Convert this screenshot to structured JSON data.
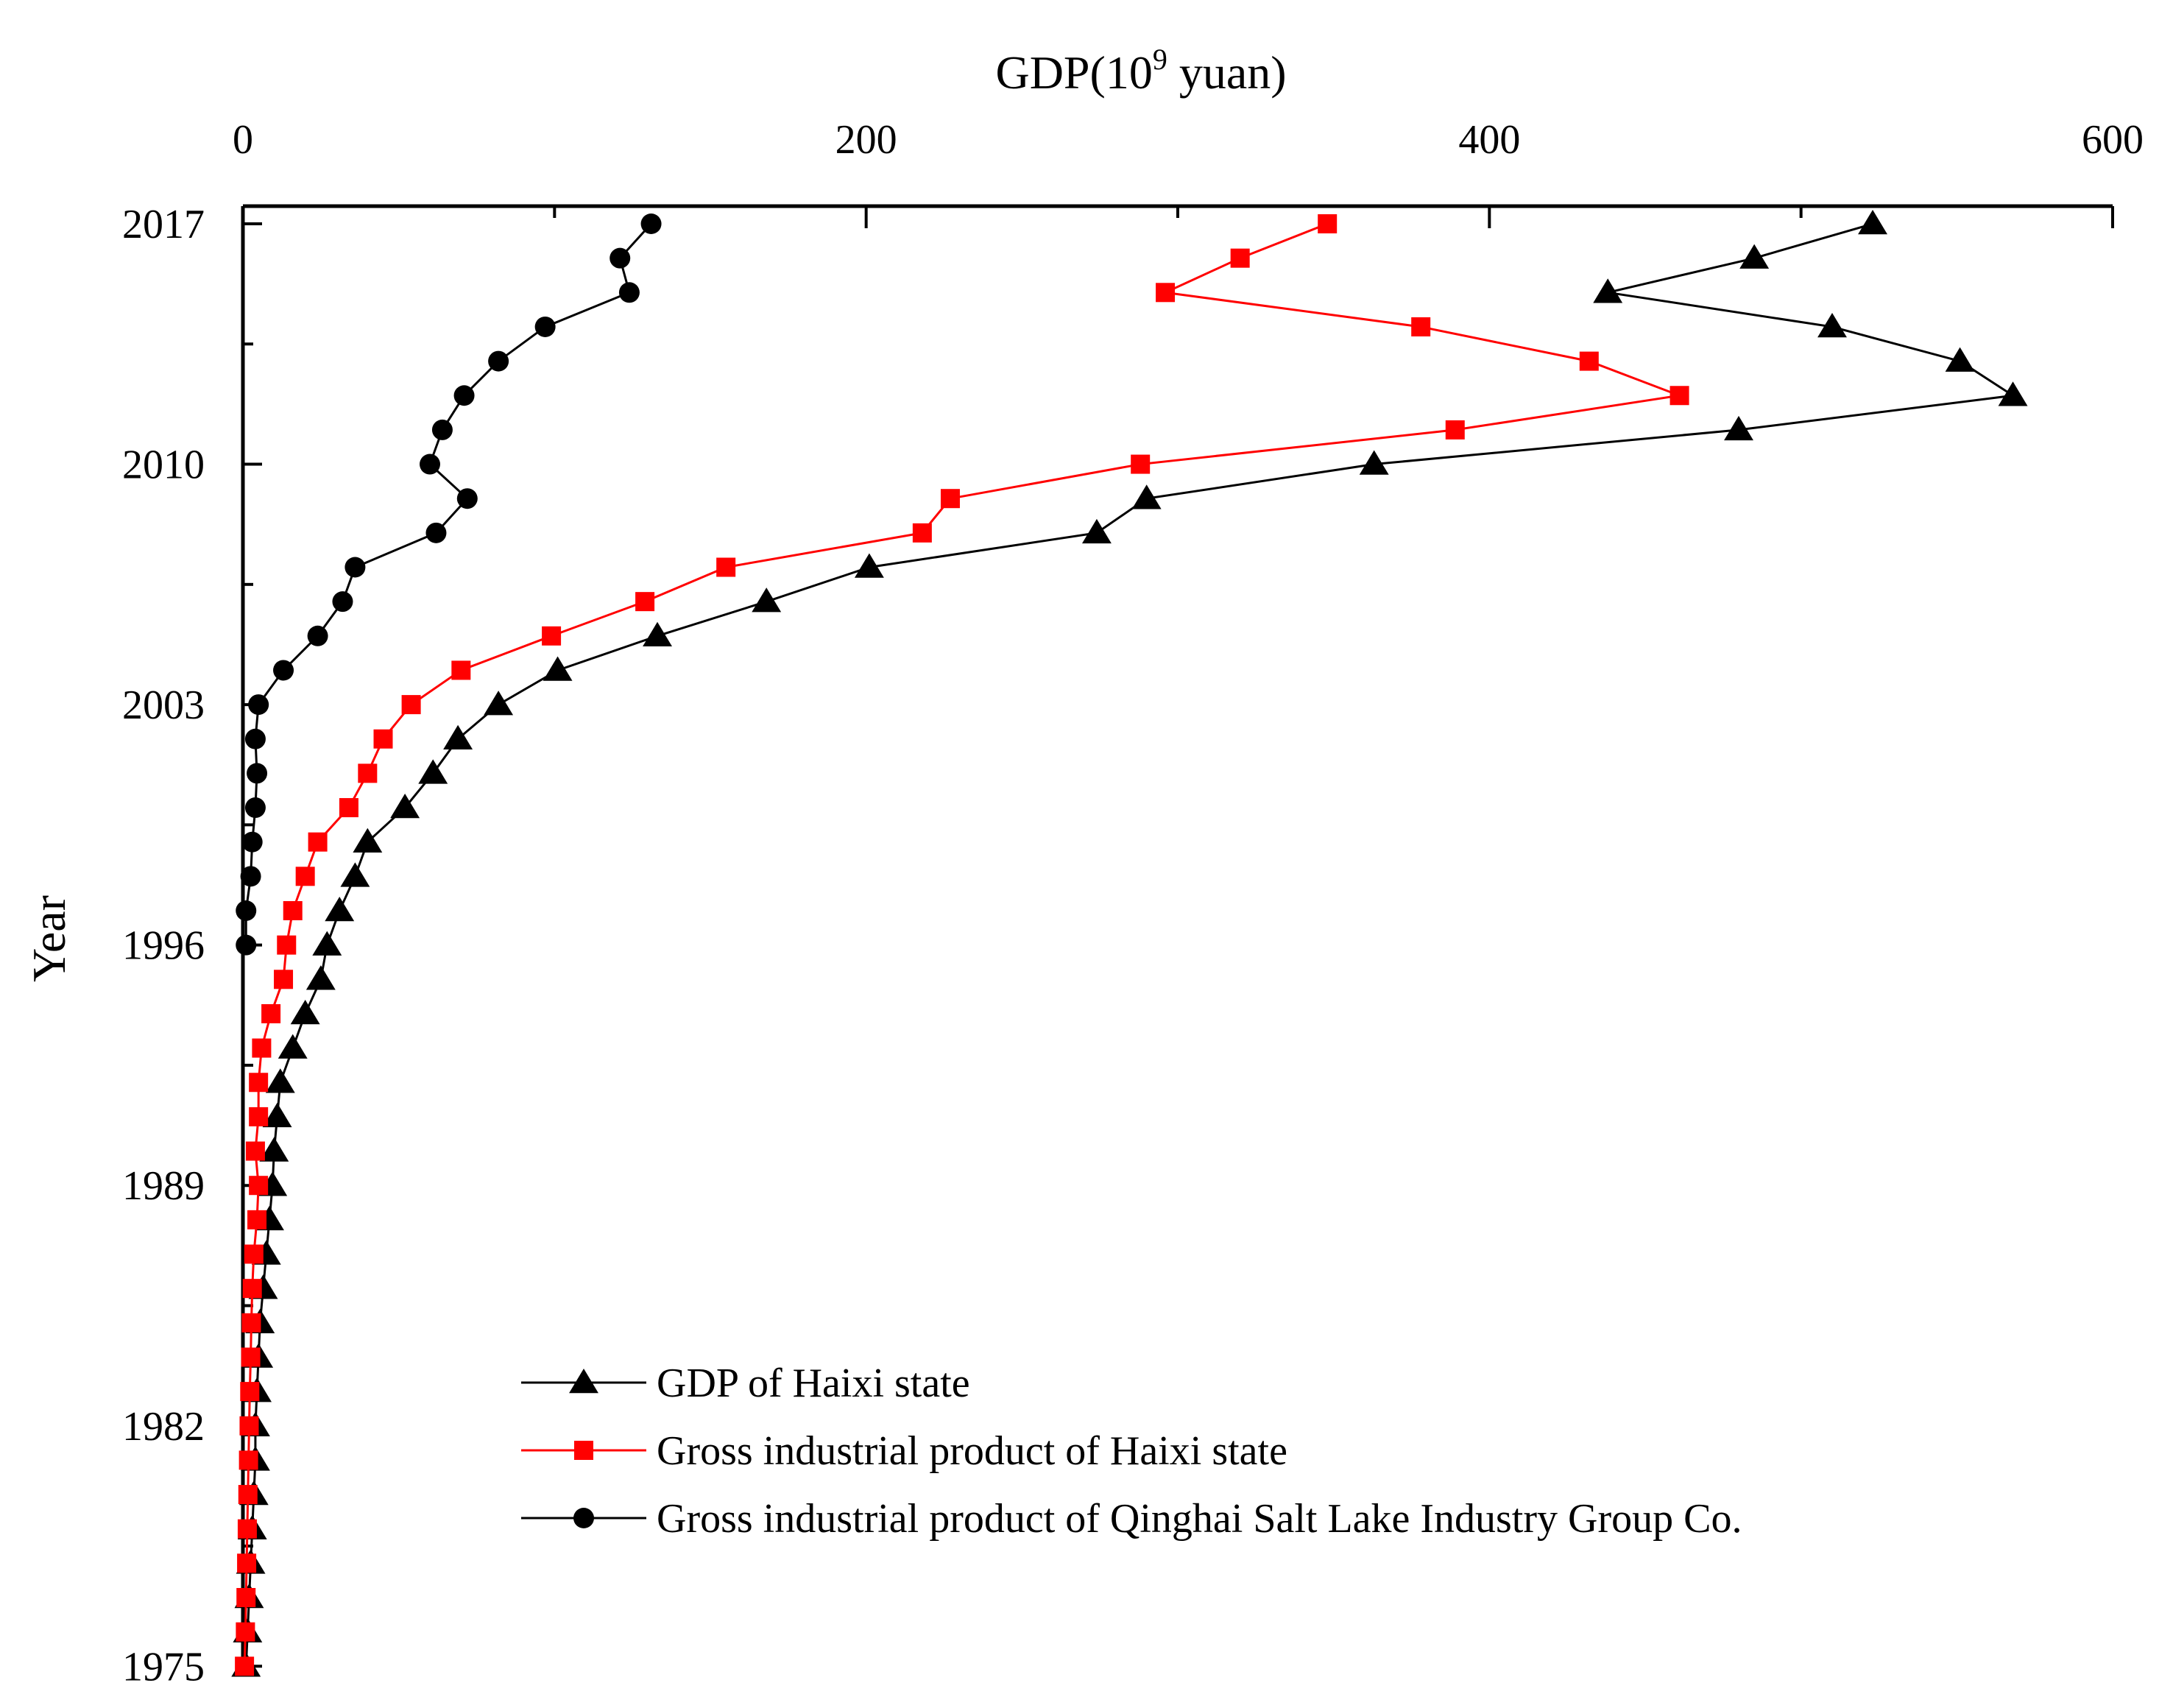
{
  "chart_data": {
    "type": "line",
    "title": "",
    "xlabel": "GDP(10",
    "xlabel_sup": "9",
    "xlabel_suffix": " yuan)",
    "ylabel": "Year",
    "xlim": [
      0,
      600
    ],
    "ylim": [
      1975,
      2018
    ],
    "x_ticks": [
      0,
      200,
      400,
      600
    ],
    "x_tick_labels": [
      "0",
      "200",
      "400",
      "600"
    ],
    "y_ticks": [
      1975,
      1982,
      1989,
      1996,
      2003,
      2010,
      2017
    ],
    "y_tick_labels": [
      "1975",
      "1982",
      "1989",
      "1996",
      "2003",
      "2010",
      "2017"
    ],
    "grid": false,
    "legend_position": "bottom-center",
    "series": [
      {
        "name": "GDP of Haixi state",
        "color": "#000000",
        "marker": "triangle",
        "years": [
          1975,
          1976,
          1977,
          1978,
          1979,
          1980,
          1981,
          1982,
          1983,
          1984,
          1985,
          1986,
          1987,
          1988,
          1989,
          1990,
          1991,
          1992,
          1993,
          1994,
          1995,
          1996,
          1997,
          1998,
          1999,
          2000,
          2001,
          2002,
          2003,
          2004,
          2005,
          2006,
          2007,
          2008,
          2009,
          2010,
          2011,
          2012,
          2013,
          2014,
          2015,
          2016,
          2017
        ],
        "values": [
          1,
          1.5,
          2,
          2.5,
          3,
          3.5,
          4,
          4,
          4.5,
          5,
          5.5,
          6.5,
          7.5,
          8.5,
          9.5,
          10,
          11,
          12,
          16,
          20,
          25,
          27,
          31,
          36,
          40,
          52,
          61,
          69,
          82,
          101,
          133,
          168,
          201,
          274,
          290,
          363,
          480,
          568,
          551,
          510,
          438,
          485,
          523
        ]
      },
      {
        "name": "Gross industrial product of Haixi state",
        "color": "#ff0000",
        "marker": "square",
        "years": [
          1975,
          1976,
          1977,
          1978,
          1979,
          1980,
          1981,
          1982,
          1983,
          1984,
          1985,
          1986,
          1987,
          1988,
          1989,
          1990,
          1991,
          1992,
          1993,
          1994,
          1995,
          1996,
          1997,
          1998,
          1999,
          2000,
          2001,
          2002,
          2003,
          2004,
          2005,
          2006,
          2007,
          2008,
          2009,
          2010,
          2011,
          2012,
          2013,
          2014,
          2015,
          2016,
          2017
        ],
        "values": [
          0.5,
          0.8,
          1,
          1.2,
          1.4,
          1.6,
          1.8,
          2,
          2.2,
          2.5,
          2.7,
          3,
          3.5,
          4.5,
          5,
          4,
          5,
          5,
          6,
          9,
          13,
          14,
          16,
          20,
          24,
          34,
          40,
          45,
          54,
          70,
          99,
          129,
          155,
          218,
          227,
          288,
          389,
          461,
          432,
          378,
          296,
          320,
          348
        ]
      },
      {
        "name": "Gross industrial product of Qinghai Salt Lake Industry Group Co.",
        "color": "#000000",
        "marker": "circle",
        "years": [
          1996,
          1997,
          1998,
          1999,
          2000,
          2001,
          2002,
          2003,
          2004,
          2005,
          2006,
          2007,
          2008,
          2009,
          2010,
          2011,
          2012,
          2013,
          2014,
          2015,
          2016,
          2017
        ],
        "values": [
          1,
          1,
          2.5,
          3,
          4,
          4.5,
          4,
          5,
          13,
          24,
          32,
          36,
          62,
          72,
          60,
          64,
          71,
          82,
          97,
          124,
          121,
          131
        ]
      }
    ]
  }
}
